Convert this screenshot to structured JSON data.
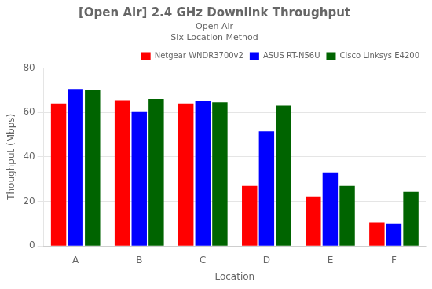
{
  "chart_data": {
    "type": "bar",
    "title": "[Open Air] 2.4 GHz Downlink Throughput",
    "subtitle": [
      "Open Air",
      "Six Location Method"
    ],
    "xlabel": "Location",
    "ylabel": "Thoughput (Mbps)",
    "categories": [
      "A",
      "B",
      "C",
      "D",
      "E",
      "F"
    ],
    "series": [
      {
        "name": "Netgear WNDR3700v2",
        "color": "#FF0000",
        "values": [
          64.0,
          65.5,
          64.0,
          27.0,
          22.0,
          10.5
        ]
      },
      {
        "name": "ASUS RT-N56U",
        "color": "#0000FF",
        "values": [
          70.5,
          60.5,
          65.0,
          51.5,
          33.0,
          10.0
        ]
      },
      {
        "name": "Cisco Linksys E4200",
        "color": "#006400",
        "values": [
          70.0,
          66.0,
          64.5,
          63.0,
          27.0,
          24.5
        ]
      }
    ],
    "ylim": [
      0,
      80
    ],
    "yticks": [
      0,
      20,
      40,
      60,
      80
    ],
    "grid": true,
    "legend": "upper right"
  }
}
